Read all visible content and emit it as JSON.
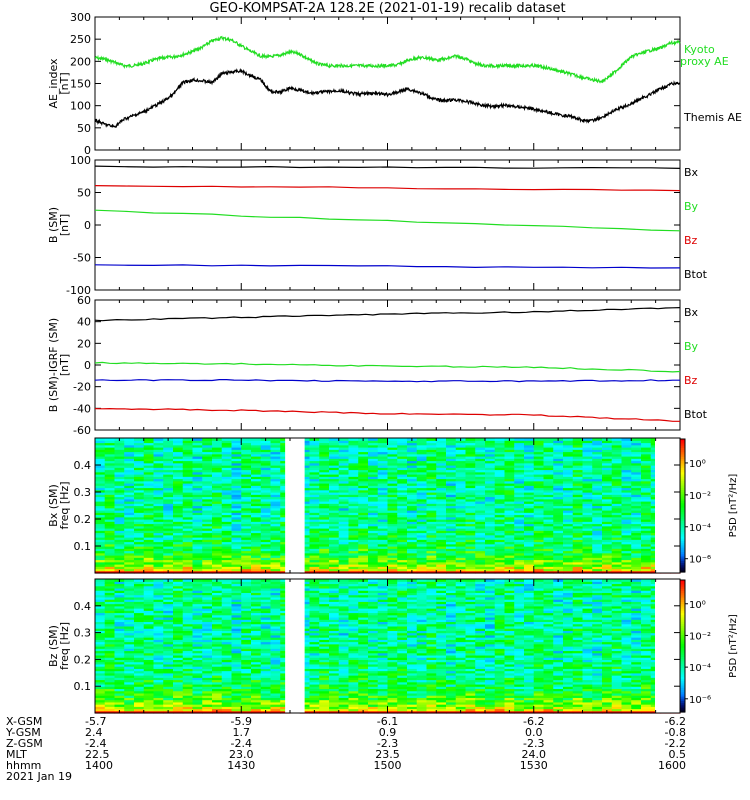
{
  "title": "GEO-KOMPSAT-2A 128.2E (2021-01-19) recalib dataset",
  "colors": {
    "black": "#000000",
    "green": "#22dd22",
    "red": "#dd0000",
    "blue": "#0000cc"
  },
  "chart_data": [
    {
      "type": "line",
      "id": "ae",
      "ylabel": [
        "AE_index",
        "[nT]"
      ],
      "ylim": [
        0,
        300
      ],
      "yticks": [
        0,
        50,
        100,
        150,
        200,
        250,
        300
      ],
      "series": [
        {
          "name": "Kyoto proxy AE",
          "label_lines": [
            "Kyoto",
            "proxy AE"
          ],
          "color": "#22dd22",
          "x": [
            0,
            2,
            4,
            6,
            8,
            10,
            12,
            14,
            16,
            18,
            20,
            22,
            24,
            26,
            28,
            30,
            32,
            34,
            36,
            38,
            40,
            42,
            44,
            46,
            48,
            50,
            52,
            54,
            56,
            58,
            60,
            62,
            64,
            66,
            68,
            70,
            72,
            74,
            76,
            78,
            80,
            82,
            84,
            86,
            88,
            90,
            92,
            94,
            96,
            98,
            100,
            102,
            104,
            106,
            108,
            110,
            112,
            114,
            116,
            118,
            120
          ],
          "y": [
            208,
            205,
            198,
            190,
            190,
            195,
            203,
            208,
            210,
            215,
            222,
            232,
            246,
            253,
            248,
            235,
            222,
            212,
            210,
            214,
            221,
            217,
            203,
            193,
            190,
            190,
            190,
            190,
            190,
            190,
            190,
            192,
            201,
            208,
            208,
            203,
            205,
            212,
            206,
            195,
            190,
            190,
            190,
            190,
            190,
            190,
            187,
            182,
            176,
            170,
            164,
            158,
            155,
            170,
            190,
            210,
            218,
            225,
            230,
            241,
            243
          ]
        },
        {
          "name": "Themis AE",
          "label_lines": [
            "Themis AE"
          ],
          "color": "#000000",
          "x": [
            0,
            2,
            4,
            6,
            8,
            10,
            12,
            14,
            16,
            18,
            20,
            22,
            24,
            26,
            28,
            30,
            32,
            34,
            36,
            38,
            40,
            42,
            44,
            46,
            48,
            50,
            52,
            54,
            56,
            58,
            60,
            62,
            64,
            66,
            68,
            70,
            72,
            74,
            76,
            78,
            80,
            82,
            84,
            86,
            88,
            90,
            92,
            94,
            96,
            98,
            100,
            102,
            104,
            106,
            108,
            110,
            112,
            114,
            116,
            118,
            120
          ],
          "y": [
            67,
            58,
            52,
            70,
            78,
            86,
            98,
            110,
            125,
            152,
            158,
            156,
            152,
            172,
            176,
            178,
            168,
            158,
            132,
            130,
            140,
            135,
            128,
            130,
            132,
            134,
            129,
            126,
            128,
            127,
            125,
            130,
            138,
            132,
            123,
            113,
            112,
            113,
            110,
            105,
            100,
            99,
            101,
            98,
            96,
            92,
            88,
            82,
            78,
            75,
            67,
            66,
            74,
            86,
            96,
            104,
            116,
            126,
            138,
            148,
            152
          ]
        }
      ]
    },
    {
      "type": "line",
      "id": "bsm",
      "ylabel": [
        "B (SM)",
        "[nT]"
      ],
      "ylim": [
        -100,
        100
      ],
      "yticks": [
        -100,
        -50,
        0,
        50,
        100
      ],
      "series": [
        {
          "name": "Bx",
          "color": "#000000",
          "x": [
            0,
            120
          ],
          "y": [
            90,
            87
          ]
        },
        {
          "name": "By",
          "color": "#22dd22",
          "x": [
            0,
            120
          ],
          "y": [
            22,
            -9
          ]
        },
        {
          "name": "Bz",
          "color": "#dd0000",
          "x": [
            0,
            120
          ],
          "y": [
            61,
            53
          ]
        },
        {
          "name": "Btot",
          "color": "#000000",
          "label_only": true,
          "x": [],
          "y": []
        },
        {
          "name": "blue",
          "color": "#0000cc",
          "no_label": true,
          "x": [
            0,
            120
          ],
          "y": [
            -61,
            -66
          ]
        }
      ]
    },
    {
      "type": "line",
      "id": "bigrf",
      "ylabel": [
        "B (SM)-IGRF (SM)",
        "[nT]"
      ],
      "ylim": [
        -60,
        60
      ],
      "yticks": [
        -60,
        -40,
        -20,
        0,
        20,
        40,
        60
      ],
      "series": [
        {
          "name": "Bx",
          "color": "#000000",
          "x": [
            0,
            30,
            60,
            90,
            120
          ],
          "y": [
            41,
            44,
            47,
            49,
            53
          ]
        },
        {
          "name": "By",
          "color": "#22dd22",
          "x": [
            0,
            30,
            60,
            90,
            120
          ],
          "y": [
            2,
            1,
            -1,
            -2,
            -6
          ]
        },
        {
          "name": "Bz",
          "color": "#dd0000",
          "x": [
            0,
            30,
            60,
            90,
            120
          ],
          "y": [
            -40,
            -42,
            -45,
            -46,
            -52
          ]
        },
        {
          "name": "Btot",
          "color": "#000000",
          "label_only": true,
          "x": [],
          "y": []
        },
        {
          "name": "blue",
          "color": "#0000cc",
          "no_label": true,
          "x": [
            0,
            30,
            60,
            90,
            120
          ],
          "y": [
            -14,
            -14,
            -15,
            -15,
            -14
          ]
        }
      ]
    },
    {
      "type": "heatmap",
      "id": "bx",
      "ylabel": [
        "Bx (SM)",
        "freq [Hz]"
      ],
      "ylim": [
        0,
        0.5
      ],
      "yticks": [
        0.1,
        0.2,
        0.3,
        0.4
      ],
      "gap": [
        39,
        43
      ],
      "colorbar": {
        "label": "PSD [nT²/Hz]",
        "ticks": [
          "10⁰",
          "10⁻²",
          "10⁻⁴",
          "10⁻⁶"
        ]
      }
    },
    {
      "type": "heatmap",
      "id": "bz",
      "ylabel": [
        "Bz (SM)",
        "freq [Hz]"
      ],
      "ylim": [
        0,
        0.5
      ],
      "yticks": [
        0.1,
        0.2,
        0.3,
        0.4
      ],
      "gap": [
        39,
        43
      ],
      "colorbar": {
        "label": "PSD [nT²/Hz]",
        "ticks": [
          "10⁰",
          "10⁻²",
          "10⁻⁴",
          "10⁻⁶"
        ]
      }
    }
  ],
  "x_axis": {
    "tick_x": [
      0,
      30,
      60,
      90,
      120
    ],
    "rows": [
      {
        "name": "X-GSM",
        "values": [
          "-5.7",
          "-5.9",
          "-6.1",
          "-6.2",
          "-6.2"
        ]
      },
      {
        "name": "Y-GSM",
        "values": [
          "2.4",
          "1.7",
          "0.9",
          "0.0",
          "-0.8"
        ]
      },
      {
        "name": "Z-GSM",
        "values": [
          "-2.4",
          "-2.4",
          "-2.3",
          "-2.3",
          "-2.2"
        ]
      },
      {
        "name": "MLT",
        "values": [
          "22.5",
          "23.0",
          "23.5",
          "24.0",
          "0.5"
        ]
      },
      {
        "name": "hhmm",
        "values": [
          "1400",
          "1430",
          "1500",
          "1530",
          "1600"
        ]
      }
    ],
    "date": "2021 Jan 19"
  }
}
